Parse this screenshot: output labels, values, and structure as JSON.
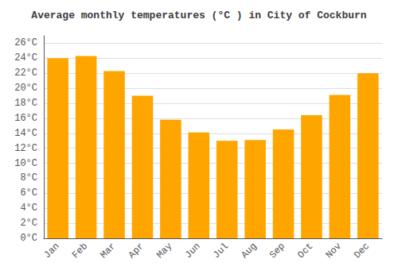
{
  "chart_data": {
    "type": "bar",
    "title": "Average monthly temperatures (°C ) in City of Cockburn",
    "categories": [
      "Jan",
      "Feb",
      "Mar",
      "Apr",
      "May",
      "Jun",
      "Jul",
      "Aug",
      "Sep",
      "Oct",
      "Nov",
      "Dec"
    ],
    "values": [
      24.0,
      24.3,
      22.3,
      19.0,
      15.8,
      14.1,
      13.0,
      13.1,
      14.5,
      16.4,
      19.1,
      22.0
    ],
    "color": "#FFA500",
    "ylim": [
      0,
      27
    ],
    "yticks": [
      {
        "value": 0,
        "label": "0°C"
      },
      {
        "value": 2,
        "label": "2°C"
      },
      {
        "value": 4,
        "label": "4°C"
      },
      {
        "value": 6,
        "label": "6°C"
      },
      {
        "value": 8,
        "label": "8°C"
      },
      {
        "value": 10,
        "label": "10°C"
      },
      {
        "value": 12,
        "label": "12°C"
      },
      {
        "value": 14,
        "label": "14°C"
      },
      {
        "value": 16,
        "label": "16°C"
      },
      {
        "value": 18,
        "label": "18°C"
      },
      {
        "value": 20,
        "label": "20°C"
      },
      {
        "value": 22,
        "label": "22°C"
      },
      {
        "value": 24,
        "label": "24°C"
      },
      {
        "value": 26,
        "label": "26°C"
      }
    ],
    "grid": true
  }
}
